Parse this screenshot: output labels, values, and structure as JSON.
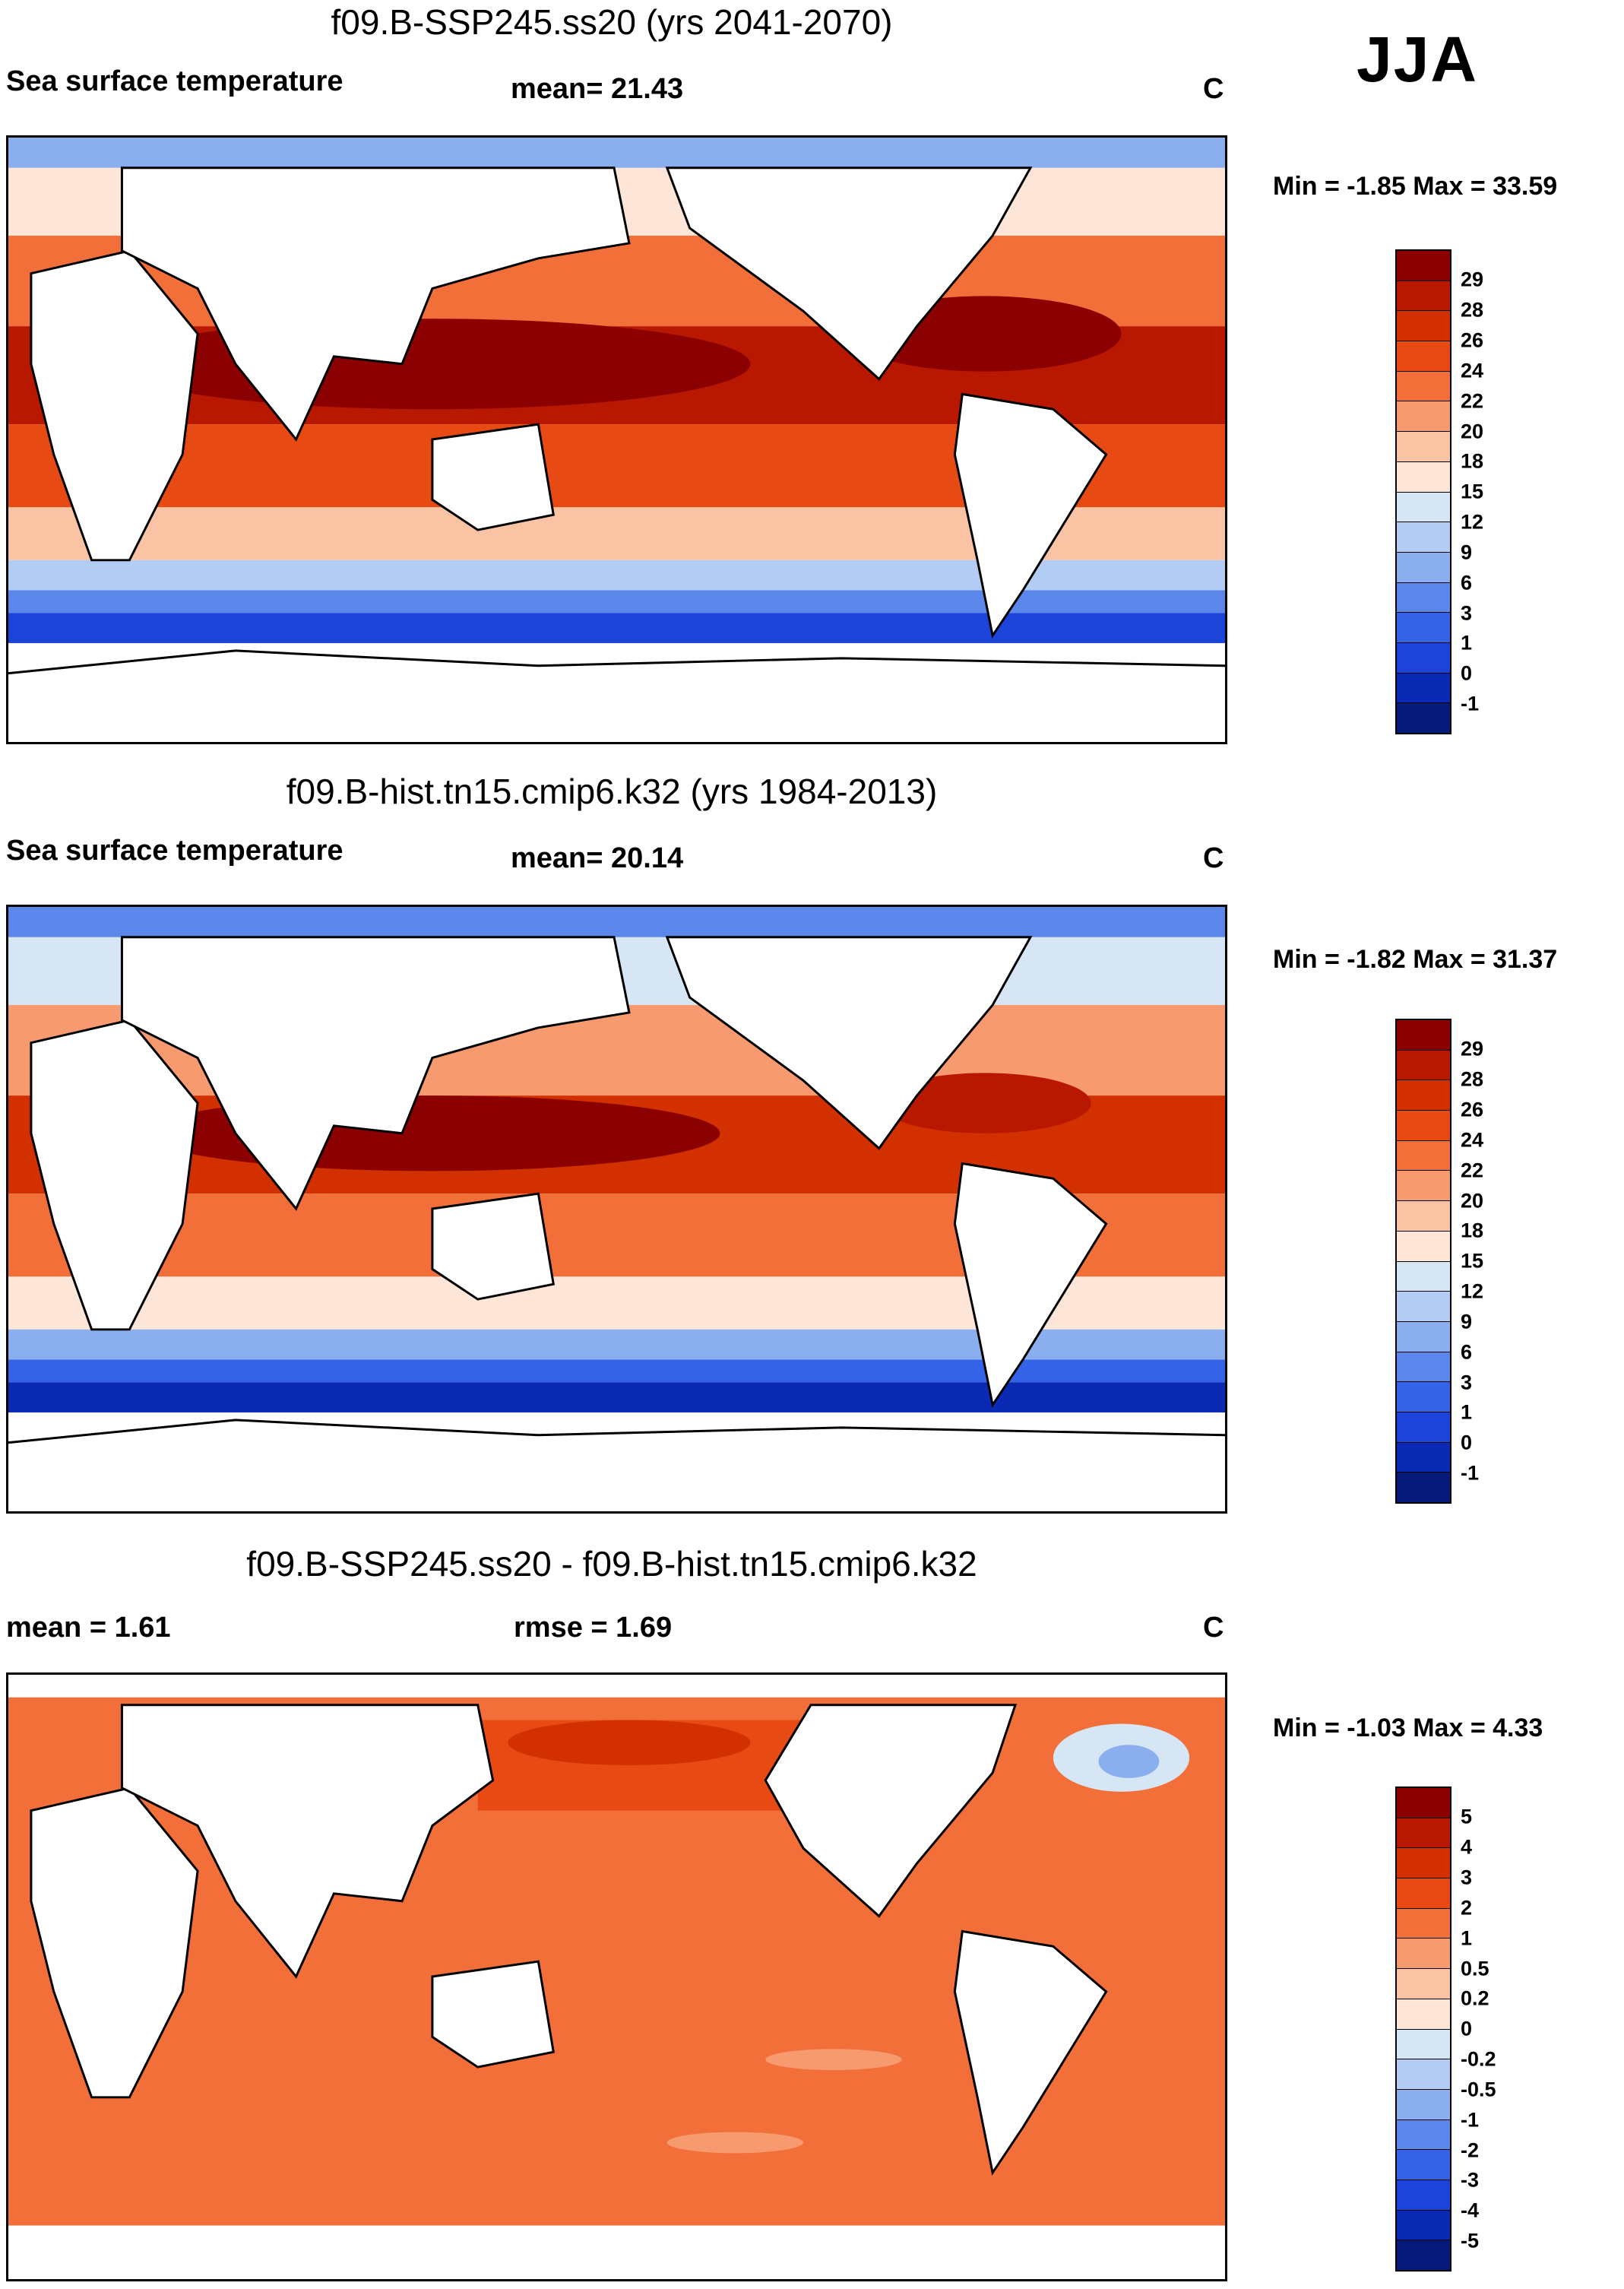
{
  "season": "JJA",
  "panels": [
    {
      "title": "f09.B-SSP245.ss20 (yrs 2041-2070)",
      "left_label": "Sea surface temperature",
      "center_label": "mean=  21.43",
      "units": "C",
      "minmax": "Min =  -1.85 Max =  33.59",
      "colorbar": {
        "labels": [
          "29",
          "28",
          "26",
          "24",
          "22",
          "20",
          "18",
          "15",
          "12",
          "9",
          "6",
          "3",
          "1",
          "0",
          "-1"
        ],
        "colors": [
          "#8b0000",
          "#b81800",
          "#d33000",
          "#e84a14",
          "#f26f3a",
          "#f79a70",
          "#fac3a4",
          "#fde6d8",
          "#d7e6f5",
          "#b3ccf3",
          "#8aaeee",
          "#5b86ea",
          "#3563e8",
          "#1d44d8",
          "#0b2ab4",
          "#061a7a"
        ]
      }
    },
    {
      "title": "f09.B-hist.tn15.cmip6.k32 (yrs 1984-2013)",
      "left_label": "Sea surface temperature",
      "center_label": "mean=  20.14",
      "units": "C",
      "minmax": "Min =  -1.82 Max =  31.37",
      "colorbar": {
        "labels": [
          "29",
          "28",
          "26",
          "24",
          "22",
          "20",
          "18",
          "15",
          "12",
          "9",
          "6",
          "3",
          "1",
          "0",
          "-1"
        ],
        "colors": [
          "#8b0000",
          "#b81800",
          "#d33000",
          "#e84a14",
          "#f26f3a",
          "#f79a70",
          "#fac3a4",
          "#fde6d8",
          "#d7e6f5",
          "#b3ccf3",
          "#8aaeee",
          "#5b86ea",
          "#3563e8",
          "#1d44d8",
          "#0b2ab4",
          "#061a7a"
        ]
      }
    },
    {
      "title": "f09.B-SSP245.ss20 - f09.B-hist.tn15.cmip6.k32",
      "left_label": "mean =    1.61",
      "center_label": "rmse =    1.69",
      "units": "C",
      "minmax": "Min =  -1.03 Max =   4.33",
      "colorbar": {
        "labels": [
          "5",
          "4",
          "3",
          "2",
          "1",
          "0.5",
          "0.2",
          "0",
          "-0.2",
          "-0.5",
          "-1",
          "-2",
          "-3",
          "-4",
          "-5"
        ],
        "colors": [
          "#8b0000",
          "#b81800",
          "#d33000",
          "#e84a14",
          "#f26f3a",
          "#f79a70",
          "#fac3a4",
          "#fde6d8",
          "#d7e6f5",
          "#b3ccf3",
          "#8aaeee",
          "#5b86ea",
          "#3563e8",
          "#1d44d8",
          "#0b2ab4",
          "#061a7a"
        ]
      }
    }
  ]
}
